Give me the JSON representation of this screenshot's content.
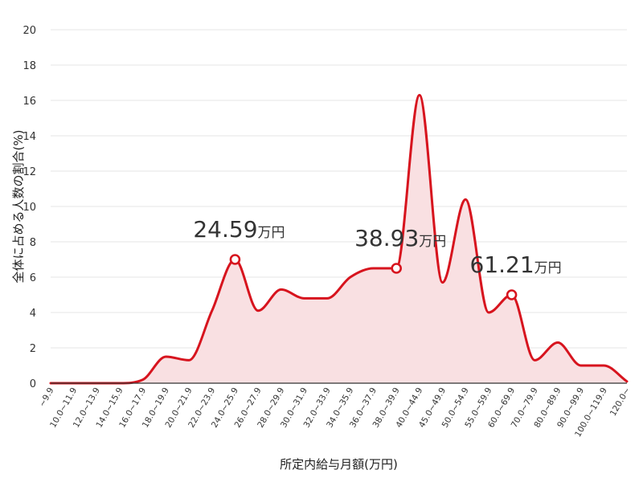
{
  "chart_data": {
    "type": "area",
    "xlabel": "所定内給与月額(万円)",
    "ylabel": "全体に占める人数の割合(%)",
    "ylim": [
      0,
      20
    ],
    "yticks": [
      0,
      2,
      4,
      6,
      8,
      10,
      12,
      14,
      16,
      18,
      20
    ],
    "grid": true,
    "colors": {
      "line": "#d7141e",
      "fill": "#f9e0e2",
      "marker_fill": "#ffffff"
    },
    "categories": [
      "~9.9",
      "10.0~11.9",
      "12.0~13.9",
      "14.0~15.9",
      "16.0~17.9",
      "18.0~19.9",
      "20.0~21.9",
      "22.0~23.9",
      "24.0~25.9",
      "26.0~27.9",
      "28.0~29.9",
      "30.0~31.9",
      "32.0~33.9",
      "34.0~35.9",
      "36.0~37.9",
      "38.0~39.9",
      "40.0~44.9",
      "45.0~49.9",
      "50.0~54.9",
      "55.0~59.9",
      "60.0~69.9",
      "70.0~79.9",
      "80.0~89.9",
      "90.0~99.9",
      "100.0~119.9",
      "120.0~"
    ],
    "values": [
      0,
      0,
      0,
      0,
      0.2,
      1.5,
      1.3,
      4.1,
      7.0,
      4.1,
      5.3,
      4.8,
      4.8,
      6.0,
      6.5,
      6.5,
      16.3,
      5.7,
      10.4,
      4.0,
      5.0,
      1.3,
      2.3,
      1.0,
      1.0,
      0.1
    ],
    "annotations": [
      {
        "category_index": 8,
        "value": 7.0,
        "number": "24.59",
        "unit": "万円"
      },
      {
        "category_index": 15,
        "value": 6.5,
        "number": "38.93",
        "unit": "万円"
      },
      {
        "category_index": 20,
        "value": 5.0,
        "number": "61.21",
        "unit": "万円"
      }
    ]
  }
}
